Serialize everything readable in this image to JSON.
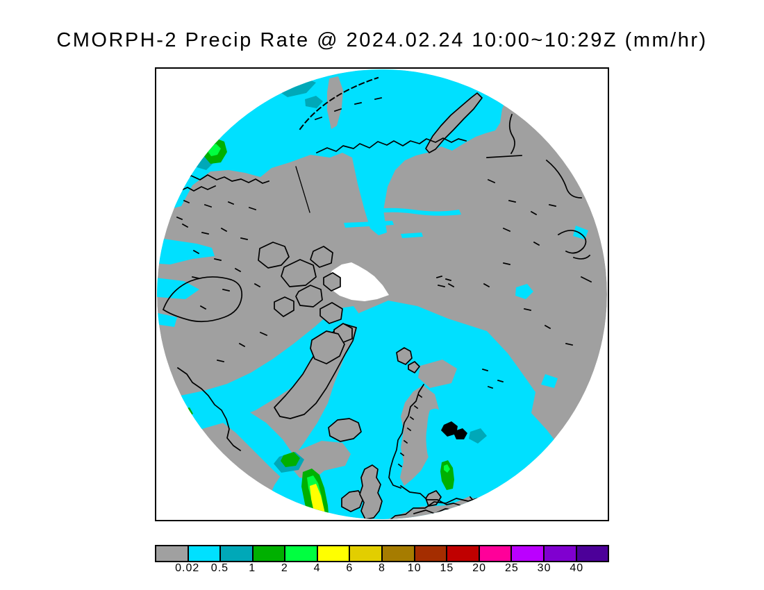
{
  "title": "CMORPH-2 Precip Rate @ 2024.02.24 10:00~10:29Z (mm/hr)",
  "chart_data": {
    "type": "heatmap",
    "title": "CMORPH-2 Precip Rate @ 2024.02.24 10:00~10:29Z (mm/hr)",
    "product": "CMORPH-2 Precip Rate",
    "datetime": "2024.02.24 10:00~10:29Z",
    "units": "mm/hr",
    "projection": "north-polar-stereographic",
    "legend_position": "bottom",
    "colorbar": {
      "tick_labels": [
        "0.02",
        "0.5",
        "1",
        "2",
        "4",
        "6",
        "8",
        "10",
        "15",
        "20",
        "25",
        "30",
        "40"
      ],
      "colors": [
        "#A0A0A0",
        "#00E0FF",
        "#00A8B8",
        "#00B000",
        "#00FF40",
        "#FFFF00",
        "#E2CE00",
        "#A67C00",
        "#A42D00",
        "#C00000",
        "#FF0099",
        "#BB00FF",
        "#8000D0",
        "#4C0099"
      ],
      "bins": [
        {
          "range": "< 0.02",
          "color": "#A0A0A0"
        },
        {
          "range": "0.02-0.5",
          "color": "#00E0FF"
        },
        {
          "range": "0.5-1",
          "color": "#00A8B8"
        },
        {
          "range": "1-2",
          "color": "#00B000"
        },
        {
          "range": "2-4",
          "color": "#00FF40"
        },
        {
          "range": "4-6",
          "color": "#FFFF00"
        },
        {
          "range": "6-8",
          "color": "#E2CE00"
        },
        {
          "range": "8-10",
          "color": "#A67C00"
        },
        {
          "range": "10-15",
          "color": "#A42D00"
        },
        {
          "range": "15-20",
          "color": "#C00000"
        },
        {
          "range": "20-25",
          "color": "#FF0099"
        },
        {
          "range": "25-30",
          "color": "#BB00FF"
        },
        {
          "range": "30-40",
          "color": "#8000D0"
        },
        {
          "range": "> 40",
          "color": "#4C0099"
        }
      ]
    },
    "map_legend_notes": "gray = land / below 0.02 mm/hr; white disc center = no-data polar gap"
  },
  "colors": {
    "background": "#FFFFFF",
    "frame": "#000000",
    "title_text": "#000000",
    "land": "#A0A0A0",
    "coast": "#000000",
    "nodata": "#FFFFFF",
    "precip_trace": "#00E0FF",
    "precip_light": "#00A8B8",
    "precip_mod": "#00B000",
    "precip_mod2": "#00FF40",
    "precip_heavy": "#FFFF00"
  }
}
